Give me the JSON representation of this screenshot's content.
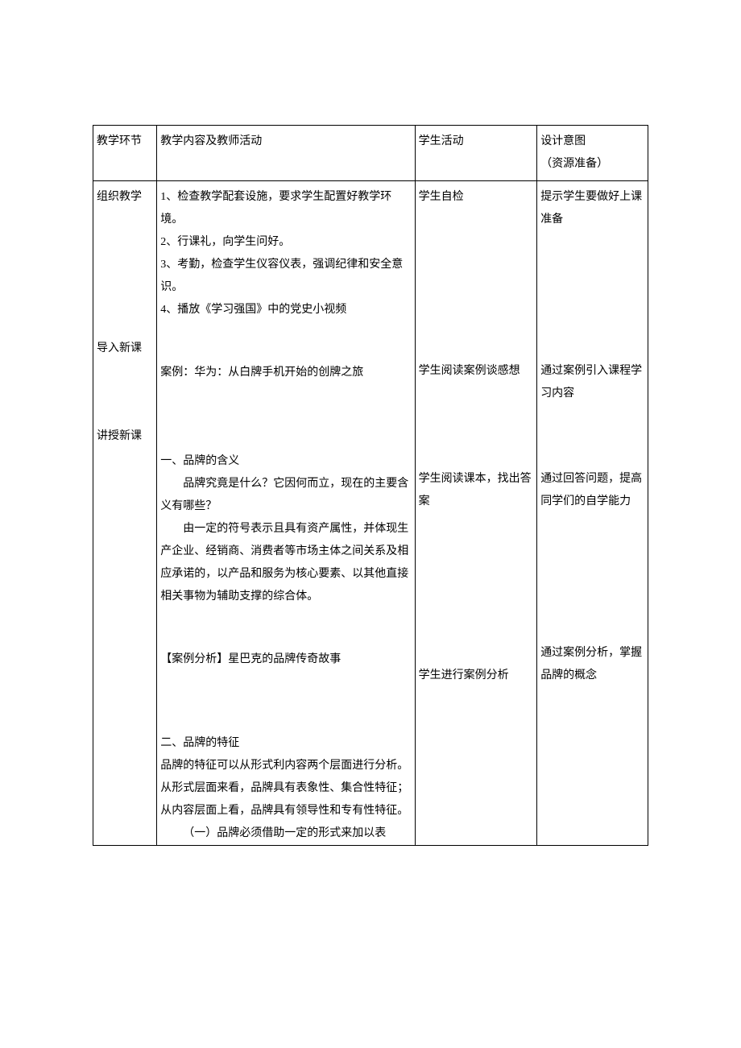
{
  "header": {
    "col1": "教学环节",
    "col2": "教学内容及教师活动",
    "col3": "学生活动",
    "col4": "设计意图\n（资源准备）"
  },
  "rows": [
    {
      "stage": "组织教学",
      "content_lines": [
        "1、检查教学配套设施，要求学生配置好教学环境。",
        "2、行课礼，向学生问好。",
        "3、考勤，检查学生仪容仪表，强调纪律和安全意识。",
        "4、播放《学习强国》中的党史小视频"
      ],
      "student": "学生自检",
      "design": "提示学生要做好上课准备"
    },
    {
      "stage": "导入新课",
      "content_lines": [
        "案例：华为：从白牌手机开始的创牌之旅"
      ],
      "student": "学生阅读案例谈感想",
      "design": "通过案例引入课程学习内容"
    },
    {
      "stage": "讲授新课",
      "sections": [
        {
          "title": "一、品牌的含义",
          "paras": [
            "品牌究竟是什么？它因何而立，现在的主要含义有哪些？",
            "由一定的符号表示且具有资产属性，并体现生产企业、经销商、消费者等市场主体之间关系及相应承诺的，以产品和服务为核心要素、以其他直接相关事物为辅助支撑的综合体。"
          ],
          "student": "学生阅读课本，找出答案",
          "design": "通过回答问题，提高同学们的自学能力"
        },
        {
          "title": "【案例分析】星巴克的品牌传奇故事",
          "paras": [],
          "student": "学生进行案例分析",
          "design": "通过案例分析，掌握品牌的概念"
        },
        {
          "title": "二、品牌的特征",
          "paras": [
            "品牌的特征可以从形式利内容两个层面进行分析。从形式层面来看，品牌具有表象性、集合性特征；从内容层面上看，品牌具有领导性和专有性特征。",
            "（一）品牌必须借助一定的形式来加以表"
          ],
          "student": "",
          "design": ""
        }
      ]
    }
  ]
}
